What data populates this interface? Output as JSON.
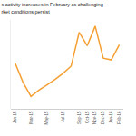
{
  "chart_data": {
    "type": "line",
    "title": "s activity increases in February as challenging\nrket conditions persist",
    "categories": [
      "Jan-15",
      null,
      "Mar-15",
      null,
      "May-15",
      null,
      "Jul-15",
      null,
      "Sep-15",
      "Oct-15",
      "Nov-15",
      "Dec-15",
      "Jan-16",
      "Feb-16"
    ],
    "values": [
      52,
      30,
      14,
      21,
      27,
      33,
      40,
      48,
      86,
      71,
      93,
      57,
      55,
      72
    ],
    "color": "#f5a033",
    "ylim": [
      0,
      100
    ],
    "grid": false,
    "tick_labels": "x"
  }
}
